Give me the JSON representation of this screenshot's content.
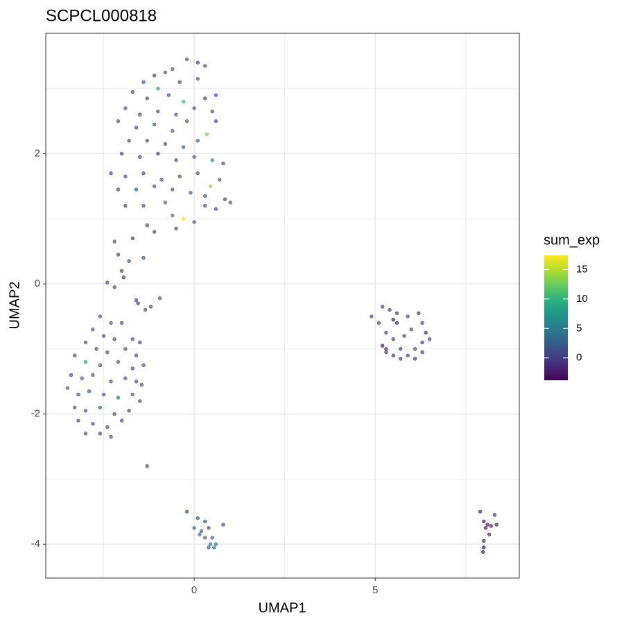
{
  "chart_data": {
    "type": "scatter",
    "title": "SCPCL000818",
    "x_label": "UMAP1",
    "y_label": "UMAP2",
    "xlim": [
      -4.1,
      8.98
    ],
    "ylim": [
      -4.52,
      3.85
    ],
    "xticks": [
      0,
      5
    ],
    "yticks": [
      -4,
      -2,
      0,
      2
    ],
    "x_minor_grid": [
      -2.5,
      2.5,
      7.5
    ],
    "y_minor_grid": [
      -3,
      -1,
      1,
      3
    ],
    "grid": true,
    "colorbar": {
      "title": "sum_exp",
      "lim": [
        -3.8,
        17.4
      ],
      "ticks": [
        0,
        5,
        10,
        15
      ],
      "colormap": [
        "#440154",
        "#482878",
        "#3e4989",
        "#31688e",
        "#26828e",
        "#1f9e89",
        "#35b779",
        "#6ece58",
        "#b5de2b",
        "#fde725"
      ]
    },
    "points": [
      [
        -1.1,
        3.2,
        1
      ],
      [
        -0.8,
        3.25,
        0.5
      ],
      [
        -0.6,
        3.3,
        2
      ],
      [
        -0.2,
        3.45,
        1
      ],
      [
        0.1,
        3.4,
        0.5
      ],
      [
        0.3,
        3.35,
        1
      ],
      [
        -1.4,
        3.1,
        1
      ],
      [
        -1.0,
        3.0,
        8
      ],
      [
        -0.4,
        3.1,
        1
      ],
      [
        0.1,
        3.15,
        2
      ],
      [
        -1.7,
        2.95,
        1
      ],
      [
        -1.3,
        2.85,
        0.5
      ],
      [
        -0.7,
        2.9,
        1
      ],
      [
        -0.3,
        2.8,
        10
      ],
      [
        0.3,
        2.85,
        1
      ],
      [
        0.6,
        2.9,
        1
      ],
      [
        -1.9,
        2.7,
        1
      ],
      [
        -1.5,
        2.6,
        0
      ],
      [
        -1.0,
        2.65,
        1
      ],
      [
        -0.5,
        2.6,
        2
      ],
      [
        0.0,
        2.7,
        1
      ],
      [
        0.5,
        2.65,
        0.5
      ],
      [
        -2.1,
        2.5,
        1
      ],
      [
        -1.6,
        2.4,
        1
      ],
      [
        -1.1,
        2.45,
        1
      ],
      [
        -0.6,
        2.35,
        2
      ],
      [
        -0.2,
        2.5,
        1
      ],
      [
        0.35,
        2.3,
        13
      ],
      [
        0.6,
        2.5,
        1
      ],
      [
        -1.8,
        2.2,
        0
      ],
      [
        -1.3,
        2.2,
        1
      ],
      [
        -0.8,
        2.15,
        2
      ],
      [
        -0.3,
        2.1,
        1
      ],
      [
        0.1,
        2.2,
        2
      ],
      [
        -2.0,
        2.0,
        1
      ],
      [
        -1.5,
        1.95,
        1
      ],
      [
        -1.0,
        2.0,
        0.5
      ],
      [
        -0.5,
        1.9,
        1
      ],
      [
        0.0,
        1.95,
        2
      ],
      [
        0.5,
        1.9,
        6
      ],
      [
        0.8,
        1.85,
        1
      ],
      [
        -2.3,
        1.7,
        0
      ],
      [
        -1.9,
        1.65,
        1
      ],
      [
        -1.4,
        1.7,
        1
      ],
      [
        -0.9,
        1.6,
        2
      ],
      [
        -0.4,
        1.65,
        1
      ],
      [
        0.1,
        1.7,
        1
      ],
      [
        0.45,
        1.5,
        14
      ],
      [
        0.7,
        1.6,
        1
      ],
      [
        -2.1,
        1.45,
        1
      ],
      [
        -1.6,
        1.45,
        2
      ],
      [
        -1.1,
        1.5,
        1
      ],
      [
        -0.6,
        1.45,
        1
      ],
      [
        -0.1,
        1.4,
        2
      ],
      [
        0.3,
        1.35,
        1
      ],
      [
        0.85,
        1.3,
        0
      ],
      [
        1.0,
        1.25,
        1
      ],
      [
        -1.9,
        1.2,
        0
      ],
      [
        -1.4,
        1.2,
        1
      ],
      [
        -0.8,
        1.25,
        1
      ],
      [
        -0.3,
        1.0,
        17
      ],
      [
        -0.6,
        1.05,
        4
      ],
      [
        0.0,
        0.95,
        1
      ],
      [
        0.6,
        1.15,
        1
      ],
      [
        0.3,
        1.2,
        1
      ],
      [
        -1.3,
        0.9,
        1
      ],
      [
        -0.5,
        0.85,
        1
      ],
      [
        -1.1,
        0.8,
        1
      ],
      [
        -1.7,
        0.7,
        0.5
      ],
      [
        -2.2,
        0.65,
        1
      ],
      [
        -2.1,
        0.45,
        0
      ],
      [
        -1.8,
        0.35,
        1
      ],
      [
        -1.4,
        0.4,
        1
      ],
      [
        -2.0,
        0.2,
        1
      ],
      [
        -1.95,
        0.1,
        0
      ],
      [
        -2.4,
        0.02,
        1
      ],
      [
        -2.2,
        -0.05,
        1
      ],
      [
        -1.6,
        -0.25,
        0
      ],
      [
        -1.55,
        -0.3,
        -1
      ],
      [
        -1.35,
        -0.4,
        1
      ],
      [
        -1.2,
        -0.35,
        1
      ],
      [
        -0.95,
        -0.22,
        1
      ],
      [
        -1.3,
        -2.8,
        1
      ],
      [
        -2.6,
        -0.5,
        1
      ],
      [
        -2.3,
        -0.6,
        1
      ],
      [
        -2.0,
        -0.6,
        1
      ],
      [
        -2.8,
        -0.7,
        1
      ],
      [
        -2.5,
        -0.8,
        2
      ],
      [
        -2.2,
        -0.85,
        1
      ],
      [
        -1.7,
        -0.85,
        1
      ],
      [
        -1.5,
        -0.9,
        0
      ],
      [
        -3.0,
        -0.9,
        1
      ],
      [
        -2.7,
        -1.0,
        1
      ],
      [
        -2.4,
        -1.05,
        2
      ],
      [
        -1.9,
        -1.0,
        1
      ],
      [
        -1.6,
        -1.1,
        1
      ],
      [
        -3.3,
        -1.1,
        1
      ],
      [
        -3.0,
        -1.2,
        8
      ],
      [
        -2.6,
        -1.25,
        1
      ],
      [
        -2.1,
        -1.2,
        1
      ],
      [
        -1.7,
        -1.3,
        1
      ],
      [
        -1.4,
        -1.25,
        1
      ],
      [
        -3.4,
        -1.4,
        1
      ],
      [
        -3.1,
        -1.45,
        2
      ],
      [
        -2.8,
        -1.4,
        1
      ],
      [
        -2.3,
        -1.5,
        1
      ],
      [
        -1.9,
        -1.45,
        2
      ],
      [
        -1.6,
        -1.5,
        1
      ],
      [
        -3.5,
        -1.6,
        1
      ],
      [
        -3.2,
        -1.7,
        1
      ],
      [
        -2.9,
        -1.65,
        2
      ],
      [
        -2.5,
        -1.7,
        1
      ],
      [
        -2.1,
        -1.75,
        4
      ],
      [
        -1.7,
        -1.7,
        1
      ],
      [
        -3.3,
        -1.9,
        1
      ],
      [
        -3.0,
        -1.95,
        1
      ],
      [
        -2.6,
        -1.9,
        2
      ],
      [
        -2.2,
        -2.0,
        1
      ],
      [
        -1.8,
        -1.95,
        1
      ],
      [
        -3.2,
        -2.1,
        1
      ],
      [
        -2.8,
        -2.15,
        1
      ],
      [
        -2.4,
        -2.2,
        1
      ],
      [
        -2.0,
        -2.1,
        1
      ],
      [
        -3.0,
        -2.3,
        1
      ],
      [
        -2.6,
        -2.3,
        1
      ],
      [
        -2.3,
        -2.35,
        1
      ],
      [
        -1.5,
        -1.8,
        1
      ],
      [
        -1.45,
        -1.55,
        1
      ],
      [
        4.9,
        -0.5,
        0
      ],
      [
        5.2,
        -0.35,
        -1
      ],
      [
        5.1,
        -0.6,
        0
      ],
      [
        5.4,
        -0.4,
        0
      ],
      [
        5.6,
        -0.45,
        -1
      ],
      [
        5.9,
        -0.5,
        0
      ],
      [
        6.2,
        -0.45,
        -1
      ],
      [
        5.5,
        -0.55,
        -3
      ],
      [
        5.6,
        -0.6,
        -3
      ],
      [
        6.3,
        -0.6,
        0
      ],
      [
        6.4,
        -0.75,
        -2
      ],
      [
        5.3,
        -0.75,
        0
      ],
      [
        6.0,
        -0.7,
        0
      ],
      [
        5.5,
        -0.85,
        0
      ],
      [
        6.3,
        -0.9,
        -1
      ],
      [
        6.5,
        -0.85,
        0
      ],
      [
        5.2,
        -0.95,
        -3
      ],
      [
        5.3,
        -1.0,
        -2
      ],
      [
        5.7,
        -1.0,
        0
      ],
      [
        6.1,
        -1.0,
        0
      ],
      [
        6.3,
        -1.05,
        -1
      ],
      [
        5.5,
        -1.1,
        -2
      ],
      [
        5.7,
        -1.15,
        -1
      ],
      [
        5.9,
        -1.1,
        0
      ],
      [
        6.1,
        -1.15,
        -1
      ],
      [
        5.3,
        -1.05,
        0
      ],
      [
        5.8,
        -0.8,
        0
      ],
      [
        -0.2,
        -3.5,
        1
      ],
      [
        0.1,
        -3.6,
        1
      ],
      [
        0.3,
        -3.65,
        2
      ],
      [
        0.0,
        -3.75,
        3
      ],
      [
        0.2,
        -3.8,
        2
      ],
      [
        0.4,
        -3.75,
        1
      ],
      [
        0.3,
        -3.9,
        3
      ],
      [
        0.5,
        -3.9,
        2
      ],
      [
        0.45,
        -4.0,
        3
      ],
      [
        0.55,
        -4.05,
        5
      ],
      [
        0.6,
        -4.0,
        4
      ],
      [
        0.8,
        -3.7,
        1
      ],
      [
        0.4,
        -4.05,
        2
      ],
      [
        0.15,
        -3.85,
        3
      ],
      [
        7.9,
        -3.5,
        -2
      ],
      [
        8.0,
        -3.65,
        -3
      ],
      [
        8.1,
        -3.7,
        -3
      ],
      [
        8.2,
        -3.72,
        -3
      ],
      [
        8.35,
        -3.7,
        -3
      ],
      [
        8.05,
        -3.75,
        -3
      ],
      [
        8.3,
        -3.55,
        -2
      ],
      [
        8.0,
        -3.95,
        -3
      ],
      [
        8.0,
        -4.05,
        -3
      ],
      [
        7.98,
        -4.12,
        -3
      ],
      [
        8.15,
        -3.85,
        -2
      ]
    ]
  }
}
